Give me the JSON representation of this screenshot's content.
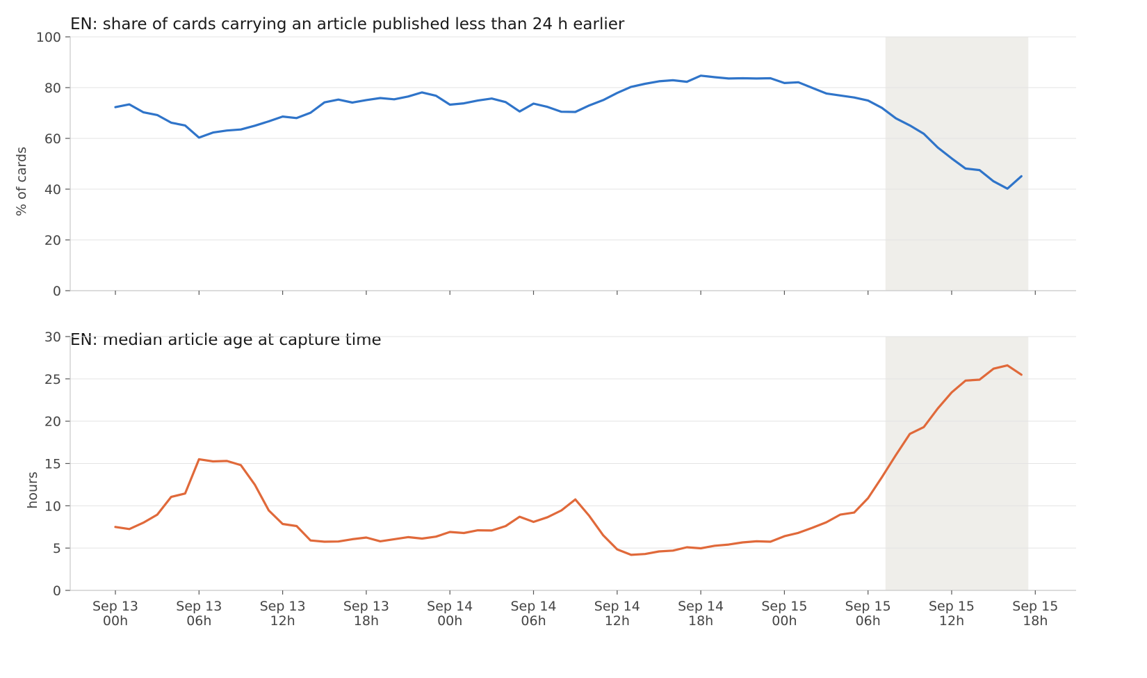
{
  "chart_data": [
    {
      "type": "line",
      "title": "EN: share of cards carrying an article published less than 24 h earlier",
      "ylabel": "% of cards",
      "xlabel": "",
      "ylim": [
        0,
        100
      ],
      "yticks": [
        0,
        20,
        40,
        60,
        80,
        100
      ],
      "grid": true,
      "color": "#2f74c9",
      "shaded_x_range": [
        "Sep 15 07:15",
        "Sep 15 17:30"
      ],
      "shade_color": "#efeeea",
      "xticks": [],
      "series": [
        {
          "x_start": "Sep 13 00:00",
          "x_step_hours": 1,
          "values": [
            72.3,
            73.4,
            70.3,
            69.2,
            66.2,
            65.1,
            60.3,
            62.3,
            63.1,
            63.5,
            65,
            66.7,
            68.6,
            68,
            70.1,
            74.2,
            75.3,
            74.1,
            75.1,
            75.9,
            75.4,
            76.5,
            78.1,
            76.8,
            73.3,
            73.8,
            74.9,
            75.7,
            74.3,
            70.6,
            73.7,
            72.4,
            70.5,
            70.4,
            73,
            75.1,
            77.9,
            80.3,
            81.5,
            82.5,
            82.9,
            82.3,
            84.7,
            84.1,
            83.6,
            83.7,
            83.6,
            83.7,
            81.8,
            82.1,
            79.9,
            77.7,
            76.9,
            76.1,
            74.9,
            72,
            67.9,
            65.1,
            61.8,
            56.4,
            52.1,
            48.1,
            47.5,
            43.1,
            40.2,
            45.1
          ]
        }
      ]
    },
    {
      "type": "line",
      "title": "EN: median article age at capture time",
      "ylabel": "hours",
      "xlabel": "",
      "ylim": [
        0,
        30
      ],
      "yticks": [
        0,
        5,
        10,
        15,
        20,
        25,
        30
      ],
      "grid": true,
      "color": "#e0693a",
      "shaded_x_range": [
        "Sep 15 07:15",
        "Sep 15 17:30"
      ],
      "shade_color": "#efeeea",
      "xticks": [
        {
          "hours": 0,
          "line1": "Sep 13",
          "line2": "00h"
        },
        {
          "hours": 6,
          "line1": "Sep 13",
          "line2": "06h"
        },
        {
          "hours": 12,
          "line1": "Sep 13",
          "line2": "12h"
        },
        {
          "hours": 18,
          "line1": "Sep 13",
          "line2": "18h"
        },
        {
          "hours": 24,
          "line1": "Sep 14",
          "line2": "00h"
        },
        {
          "hours": 30,
          "line1": "Sep 14",
          "line2": "06h"
        },
        {
          "hours": 36,
          "line1": "Sep 14",
          "line2": "12h"
        },
        {
          "hours": 42,
          "line1": "Sep 14",
          "line2": "18h"
        },
        {
          "hours": 48,
          "line1": "Sep 15",
          "line2": "00h"
        },
        {
          "hours": 54,
          "line1": "Sep 15",
          "line2": "06h"
        },
        {
          "hours": 60,
          "line1": "Sep 15",
          "line2": "12h"
        },
        {
          "hours": 66,
          "line1": "Sep 15",
          "line2": "18h"
        }
      ],
      "series": [
        {
          "x_start": "Sep 13 00:00",
          "x_step_hours": 1,
          "values": [
            7.5,
            7.25,
            8.0,
            8.95,
            11.05,
            11.45,
            15.5,
            15.25,
            15.3,
            14.8,
            12.5,
            9.45,
            7.85,
            7.6,
            5.9,
            5.75,
            5.78,
            6.05,
            6.25,
            5.8,
            6.05,
            6.3,
            6.12,
            6.35,
            6.9,
            6.78,
            7.1,
            7.08,
            7.6,
            8.7,
            8.1,
            8.65,
            9.45,
            10.75,
            8.8,
            6.5,
            4.85,
            4.2,
            4.3,
            4.6,
            4.7,
            5.1,
            4.97,
            5.28,
            5.42,
            5.67,
            5.8,
            5.75,
            6.4,
            6.8,
            7.4,
            8.05,
            8.95,
            9.2,
            10.9,
            13.4,
            16.0,
            18.5,
            19.3,
            21.5,
            23.4,
            24.8,
            24.9,
            26.2,
            26.6,
            25.5
          ]
        }
      ]
    }
  ]
}
